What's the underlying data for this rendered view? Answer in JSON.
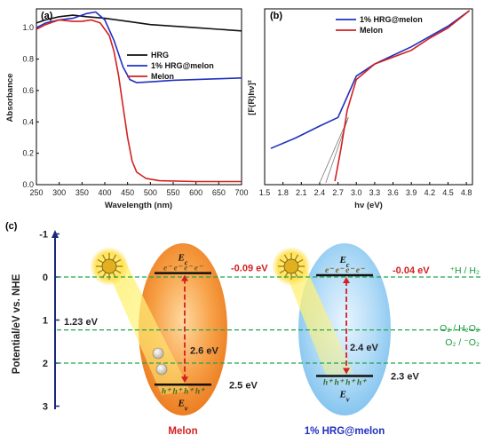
{
  "chart_data": [
    {
      "type": "line",
      "panel": "(a)",
      "xlabel": "Wavelength (nm)",
      "ylabel": "Absorbance",
      "xlim": [
        250,
        700
      ],
      "ylim": [
        0.0,
        1.1
      ],
      "xticks": [
        "250",
        "300",
        "350",
        "400",
        "450",
        "500",
        "550",
        "600",
        "650",
        "700"
      ],
      "yticks": [
        "0.0",
        "0.2",
        "0.4",
        "0.6",
        "0.8",
        "1.0"
      ],
      "legend_position": "middle-right",
      "series": [
        {
          "name": "HRG",
          "color": "#111111",
          "points": [
            [
              250,
              1.03
            ],
            [
              270,
              1.05
            ],
            [
              300,
              1.07
            ],
            [
              330,
              1.08
            ],
            [
              360,
              1.07
            ],
            [
              400,
              1.06
            ],
            [
              450,
              1.04
            ],
            [
              500,
              1.02
            ],
            [
              550,
              1.01
            ],
            [
              600,
              1.0
            ],
            [
              650,
              0.99
            ],
            [
              700,
              0.98
            ]
          ]
        },
        {
          "name": "1% HRG@melon",
          "color": "#2030c0",
          "points": [
            [
              250,
              1.0
            ],
            [
              270,
              1.03
            ],
            [
              300,
              1.05
            ],
            [
              330,
              1.06
            ],
            [
              360,
              1.09
            ],
            [
              380,
              1.1
            ],
            [
              400,
              1.05
            ],
            [
              420,
              0.92
            ],
            [
              440,
              0.75
            ],
            [
              455,
              0.67
            ],
            [
              470,
              0.65
            ],
            [
              500,
              0.655
            ],
            [
              550,
              0.665
            ],
            [
              600,
              0.67
            ],
            [
              650,
              0.675
            ],
            [
              700,
              0.68
            ]
          ]
        },
        {
          "name": "Melon",
          "color": "#d42020",
          "points": [
            [
              250,
              0.99
            ],
            [
              270,
              1.02
            ],
            [
              300,
              1.05
            ],
            [
              330,
              1.04
            ],
            [
              350,
              1.04
            ],
            [
              370,
              1.05
            ],
            [
              390,
              1.03
            ],
            [
              410,
              0.95
            ],
            [
              420,
              0.85
            ],
            [
              430,
              0.7
            ],
            [
              440,
              0.5
            ],
            [
              450,
              0.3
            ],
            [
              460,
              0.15
            ],
            [
              470,
              0.08
            ],
            [
              490,
              0.04
            ],
            [
              520,
              0.025
            ],
            [
              600,
              0.02
            ],
            [
              700,
              0.02
            ]
          ]
        }
      ]
    },
    {
      "type": "line",
      "panel": "(b)",
      "xlabel": "hν (eV)",
      "ylabel": "[F(R)hν]²",
      "xlim": [
        1.5,
        4.9
      ],
      "xticks": [
        "1.5",
        "1.8",
        "2.1",
        "2.4",
        "2.7",
        "3.0",
        "3.3",
        "3.6",
        "3.9",
        "4.2",
        "4.5",
        "4.8"
      ],
      "legend_position": "top-left",
      "tangent_intercepts_eV": [
        2.4,
        2.5
      ],
      "series": [
        {
          "name": "1% HRG@melon",
          "color": "#2030c0",
          "points": [
            [
              1.6,
              0.2
            ],
            [
              2.0,
              0.26
            ],
            [
              2.4,
              0.33
            ],
            [
              2.7,
              0.38
            ],
            [
              2.85,
              0.5
            ],
            [
              3.0,
              0.62
            ],
            [
              3.3,
              0.69
            ],
            [
              3.6,
              0.74
            ],
            [
              3.9,
              0.79
            ],
            [
              4.2,
              0.85
            ],
            [
              4.5,
              0.91
            ],
            [
              4.85,
              1.0
            ]
          ]
        },
        {
          "name": "Melon",
          "color": "#d42020",
          "points": [
            [
              2.65,
              0.01
            ],
            [
              2.75,
              0.2
            ],
            [
              2.85,
              0.42
            ],
            [
              3.0,
              0.6
            ],
            [
              3.3,
              0.69
            ],
            [
              3.6,
              0.73
            ],
            [
              3.9,
              0.77
            ],
            [
              4.2,
              0.84
            ],
            [
              4.5,
              0.9
            ],
            [
              4.85,
              1.0
            ]
          ]
        }
      ]
    },
    {
      "type": "diagram",
      "panel": "(c)",
      "ylabel": "Potential/eV vs. NHE",
      "ylim": [
        -1.0,
        3.0
      ],
      "yticks": [
        "-1",
        "0",
        "1",
        "2",
        "3"
      ],
      "redox_levels": [
        {
          "label": "⁺H / H₂",
          "potential": 0.0
        },
        {
          "label": "O₂ / H₂O₂",
          "potential": 1.23
        },
        {
          "label": "O₂ / ⁻O₂",
          "potential": 2.0
        }
      ],
      "left_gap_label": "1.23 eV",
      "materials": [
        {
          "name": "Melon",
          "cb": -0.09,
          "vb": 2.5,
          "cb_label": "-0.09 eV",
          "vb_label": "2.5 eV",
          "gap_label": "2.6 eV"
        },
        {
          "name": "1% HRG@melon",
          "cb": -0.04,
          "vb": 2.3,
          "cb_label": "-0.04 eV",
          "vb_label": "2.3 eV",
          "gap_label": "2.4 eV"
        }
      ],
      "electrons": "e⁻ e⁻ e⁻ e⁻",
      "holes": "h⁺ h⁺ h⁺ h⁺",
      "ec_label": "E",
      "ec_sub": "c",
      "ev_label": "E",
      "ev_sub": "v"
    }
  ]
}
